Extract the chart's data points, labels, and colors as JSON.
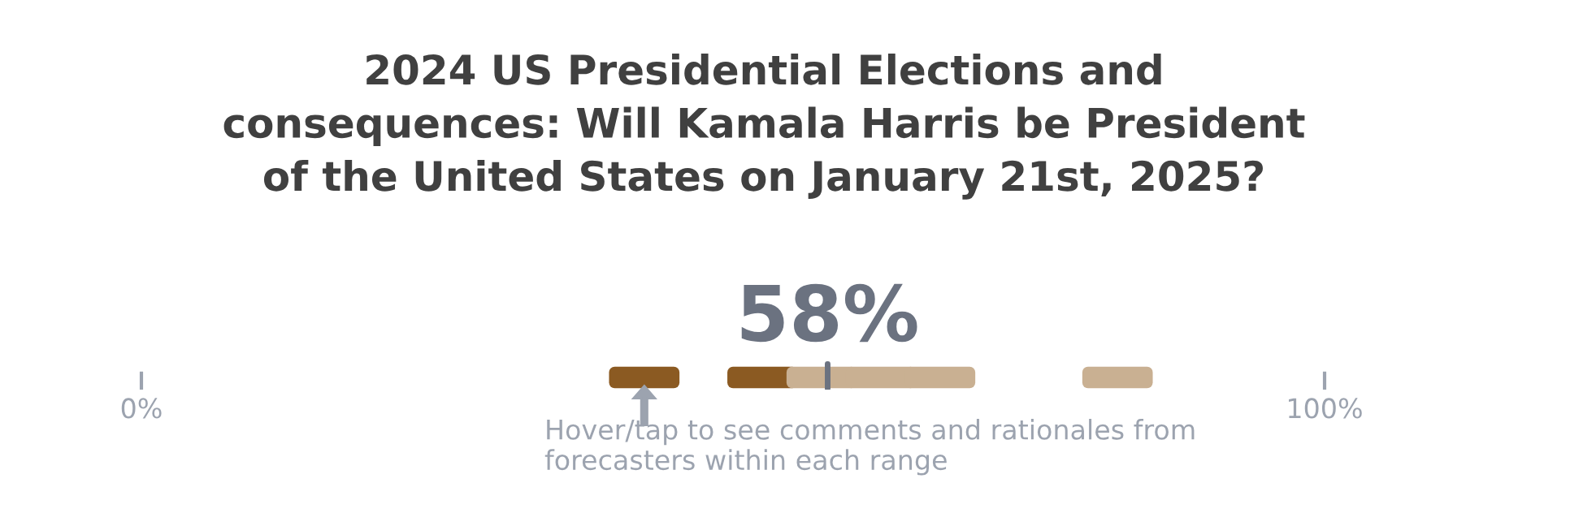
{
  "chart_data": {
    "type": "bar",
    "orientation": "horizontal",
    "title": "2024 US Presidential Elections and\nconsequences: Will Kamala Harris be President\nof the United States on January 21st, 2025?",
    "categories": [
      null
    ],
    "series": [
      {
        "values": [
          5
        ],
        "base": [
          40
        ],
        "color": "#8b5a22"
      },
      {
        "values": [
          5
        ],
        "base": [
          50
        ],
        "color": "#8b5a22"
      },
      {
        "values": [
          5
        ],
        "base": [
          55
        ],
        "color": "#c9b092"
      },
      {
        "values": [
          5
        ],
        "base": [
          60
        ],
        "color": "#c9b092"
      },
      {
        "values": [
          5
        ],
        "base": [
          65
        ],
        "color": "#c9b092"
      },
      {
        "values": [
          5
        ],
        "base": [
          80
        ],
        "color": "#c9b092"
      }
    ],
    "xlim": [
      0,
      100
    ],
    "xticks": [
      {
        "value": 0,
        "label": "0%"
      },
      {
        "value": 100,
        "label": "100%"
      }
    ],
    "ref_lines": [
      {
        "axis": "x",
        "value": 58,
        "label": "58%",
        "color": "#6b7280"
      }
    ],
    "annotations": [
      "Hover/tap to see comments and rationales from\nforecasters within each range"
    ],
    "grid": false,
    "legend": false
  }
}
